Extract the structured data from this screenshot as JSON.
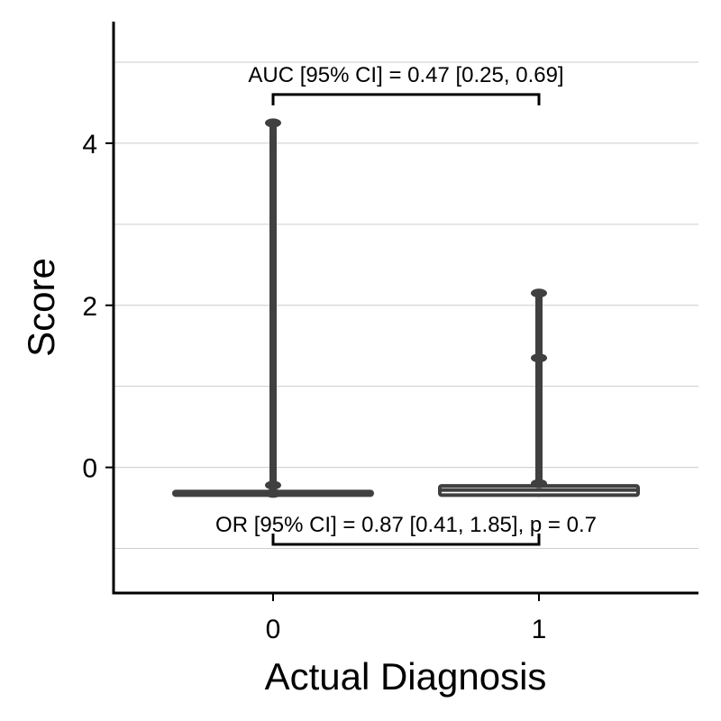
{
  "chart_data": {
    "type": "boxplot",
    "title": "",
    "xlabel": "Actual Diagnosis",
    "ylabel": "Score",
    "categories": [
      "0",
      "1"
    ],
    "ylim": [
      -1.55,
      5.5
    ],
    "yticks": [
      0,
      2,
      4
    ],
    "grid": true,
    "groups": [
      {
        "category": "0",
        "box": {
          "q1": -0.32,
          "median": -0.32,
          "q3": -0.32
        },
        "whisker": [
          -0.32,
          -0.32
        ],
        "points": [
          -0.32,
          -0.22,
          4.25
        ]
      },
      {
        "category": "1",
        "box": {
          "q1": -0.32,
          "median": -0.28,
          "q3": -0.25
        },
        "whisker": [
          -0.32,
          -0.25
        ],
        "points": [
          -0.2,
          1.35,
          2.15
        ]
      }
    ],
    "annotations": [
      {
        "name": "auc",
        "text": "AUC [95% CI] = 0.47 [0.25, 0.69]",
        "y": 4.6,
        "from": "0",
        "to": "1"
      },
      {
        "name": "or",
        "text": "OR [95% CI] = 0.87 [0.41, 1.85], p = 0.7",
        "y": -0.95,
        "from": "0",
        "to": "1"
      }
    ],
    "colors": {
      "box": "#404040",
      "box_fill": "#ffffff",
      "grid": "#cccccc",
      "axis": "#000000"
    }
  }
}
